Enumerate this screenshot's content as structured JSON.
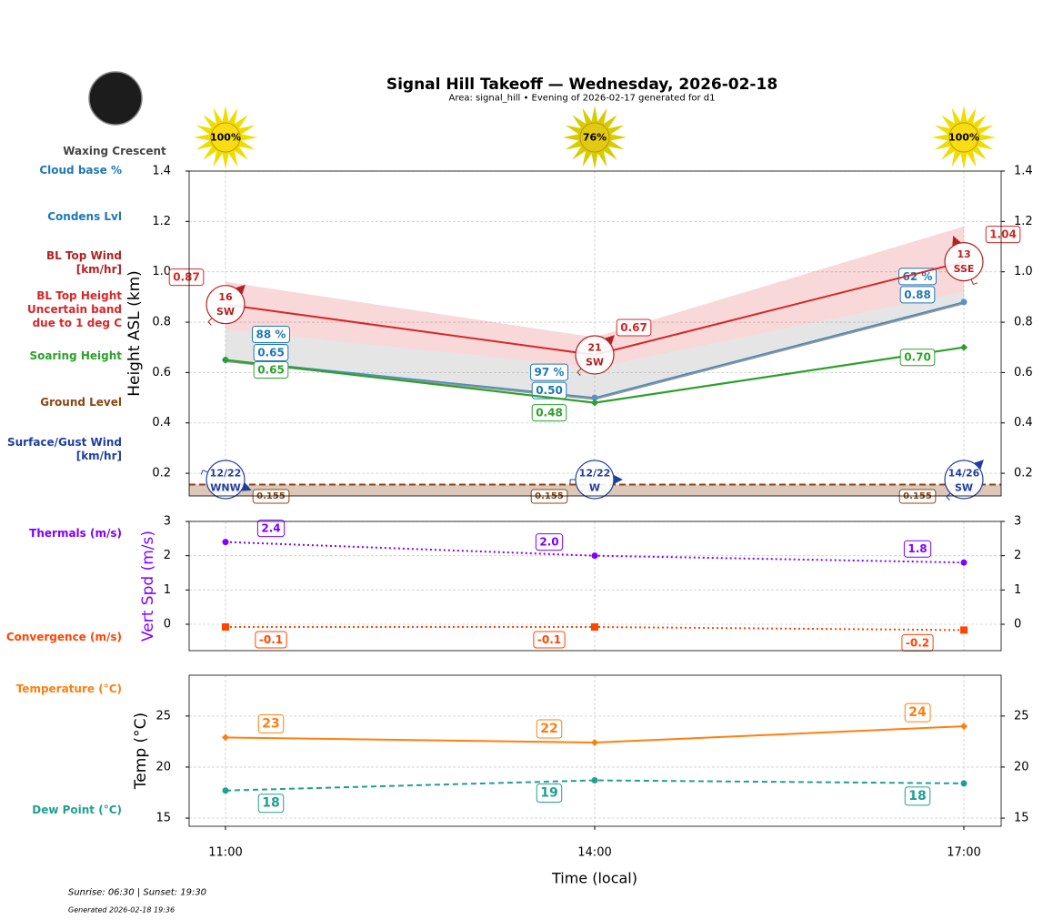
{
  "header": {
    "title": "Signal Hill Takeoff — Wednesday, 2026-02-18",
    "subtitle": "Area: signal_hill • Evening of 2026-02-17 generated for d1"
  },
  "moon": {
    "phase": "Waxing Crescent"
  },
  "sun": {
    "values": [
      100,
      76,
      100
    ],
    "value_labels": [
      "100%",
      "76%",
      "100%"
    ]
  },
  "xlabel": "Time (local)",
  "chart_data": [
    {
      "type": "line",
      "ylabel": "Height ASL (km)",
      "categories": [
        "11:00",
        "14:00",
        "17:00"
      ],
      "ylim": [
        0.11,
        1.4
      ],
      "yticks": [
        0.2,
        0.4,
        0.6,
        0.8,
        {
          "value": 1,
          "label": "1.0"
        },
        1.2,
        1.4
      ],
      "grid": true,
      "cloud_base": {
        "name": "Cloud base %",
        "color": "#1f77b4",
        "values": [
          88,
          97,
          62
        ],
        "value_labels": [
          "88 %",
          "97 %",
          "62 %"
        ]
      },
      "condens": {
        "name": "Condens Lvl",
        "color": "#1f77b4",
        "values": [
          0.65,
          0.5,
          0.88
        ],
        "value_labels": [
          "0.65",
          "0.50",
          "0.88"
        ]
      },
      "bl_top_wind": {
        "name": "BL Top Wind\n[km/hr]",
        "color": "#b22222",
        "values": [
          16,
          21,
          13
        ],
        "directions": [
          "SW",
          "SW",
          "SSE"
        ]
      },
      "bl_top": {
        "name": "BL Top Height\nUncertain band\ndue to 1 deg C",
        "color": "#d62728",
        "values": [
          0.87,
          0.67,
          1.04
        ],
        "band_lower": [
          0.77,
          0.62,
          0.92
        ],
        "band_upper": [
          0.96,
          0.74,
          1.18
        ]
      },
      "soaring": {
        "name": "Soaring Height",
        "color": "#2ca02c",
        "values": [
          0.65,
          0.48,
          0.7
        ],
        "value_labels": [
          "0.65",
          "0.48",
          "0.70"
        ]
      },
      "ground": {
        "name": "Ground Level",
        "color": "#8b4513",
        "values": [
          0.155,
          0.155,
          0.155
        ]
      },
      "surface_wind": {
        "name": "Surface/Gust Wind\n[km/hr]",
        "color": "#1f3f9f",
        "speed": [
          12,
          12,
          14
        ],
        "gust": [
          22,
          22,
          26
        ],
        "value_labels": [
          "12/22",
          "12/22",
          "14/26"
        ],
        "directions": [
          "WNW",
          "W",
          "SW"
        ]
      }
    },
    {
      "type": "line",
      "ylabel": "Vert Spd (m/s)",
      "ylabel_color": "#7f00ff",
      "categories": [
        "11:00",
        "14:00",
        "17:00"
      ],
      "ylim": [
        -0.77,
        3
      ],
      "yticks": [
        0,
        1,
        2,
        3
      ],
      "grid": true,
      "series": [
        {
          "name": "Thermals (m/s)",
          "color": "#7f00ff",
          "values": [
            2.4,
            2.0,
            1.8
          ],
          "value_labels": [
            "2.4",
            "2.0",
            "1.8"
          ],
          "linestyle": "dotted",
          "marker": "o"
        },
        {
          "name": "Convergence (m/s)",
          "color": "#ff4500",
          "values": [
            -0.08,
            -0.08,
            -0.17
          ],
          "value_labels": [
            "-0.1",
            "-0.1",
            "-0.2"
          ],
          "linestyle": "dotted",
          "marker": "s"
        }
      ]
    },
    {
      "type": "line",
      "ylabel": "Temp (°C)",
      "categories": [
        "11:00",
        "14:00",
        "17:00"
      ],
      "ylim": [
        14.2,
        29
      ],
      "yticks": [
        15,
        20,
        25
      ],
      "grid": true,
      "series": [
        {
          "name": "Temperature (°C)",
          "color": "#ff7f0e",
          "values": [
            22.9,
            22.4,
            24.0
          ],
          "value_labels": [
            "23",
            "22",
            "24"
          ],
          "linestyle": "solid",
          "marker": "D"
        },
        {
          "name": "Dew Point (°C)",
          "color": "#20a090",
          "values": [
            17.7,
            18.7,
            18.4
          ],
          "value_labels": [
            "18",
            "19",
            "18"
          ],
          "linestyle": "dashed",
          "marker": "o"
        }
      ]
    }
  ],
  "footer": {
    "sun_times": "Sunrise: 06:30 | Sunset: 19:30",
    "generated": "Generated 2026-02-18 19:36"
  }
}
